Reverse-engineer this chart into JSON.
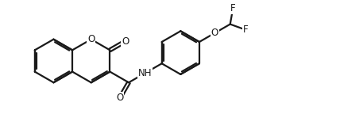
{
  "bg_color": "#ffffff",
  "line_color": "#1a1a1a",
  "line_width": 1.6,
  "font_size": 8.5,
  "figsize": [
    4.28,
    1.58
  ],
  "dpi": 100,
  "xlim": [
    -0.2,
    9.8
  ],
  "ylim": [
    -0.3,
    3.6
  ]
}
